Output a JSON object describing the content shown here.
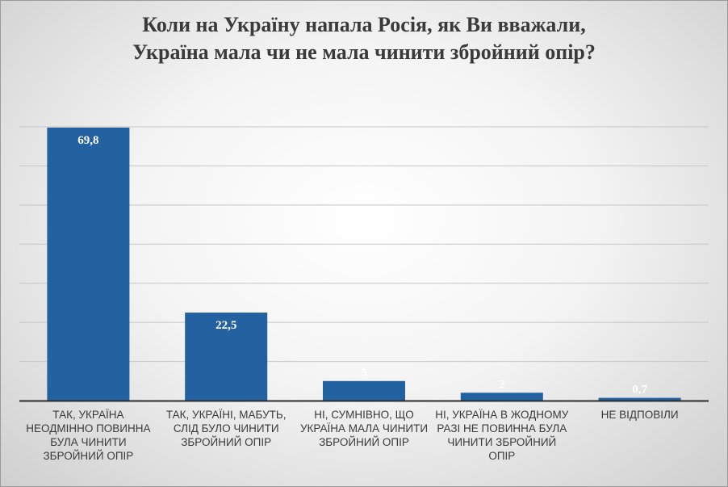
{
  "chart_data": {
    "type": "bar",
    "title_line1": "Коли на Україну напала Росія, як Ви вважали,",
    "title_line2": "Україна мала чи не мала чинити збройний опір?",
    "categories": [
      "ТАК, УКРАЇНА НЕОДМІННО ПОВИННА БУЛА ЧИНИТИ ЗБРОЙНИЙ ОПІР",
      "ТАК, УКРАЇНІ, МАБУТЬ, СЛІД БУЛО ЧИНИТИ ЗБРОЙНИЙ ОПІР",
      "НІ, СУМНІВНО, ЩО УКРАЇНА МАЛА ЧИНИТИ ЗБРОЙНИЙ ОПІР",
      "НІ, УКРАЇНА В ЖОДНОМУ РАЗІ НЕ ПОВИННА БУЛА ЧИНИТИ ЗБРОЙНИЙ ОПІР",
      "НЕ ВІДПОВІЛИ"
    ],
    "values": [
      69.8,
      22.5,
      5,
      2,
      0.7
    ],
    "data_labels": [
      "69,8",
      "22,5",
      "5",
      "2",
      "0,7"
    ],
    "ylim": [
      0,
      70
    ],
    "grid": true,
    "bar_color": "#2461a0",
    "label_color": "#ffffff"
  }
}
